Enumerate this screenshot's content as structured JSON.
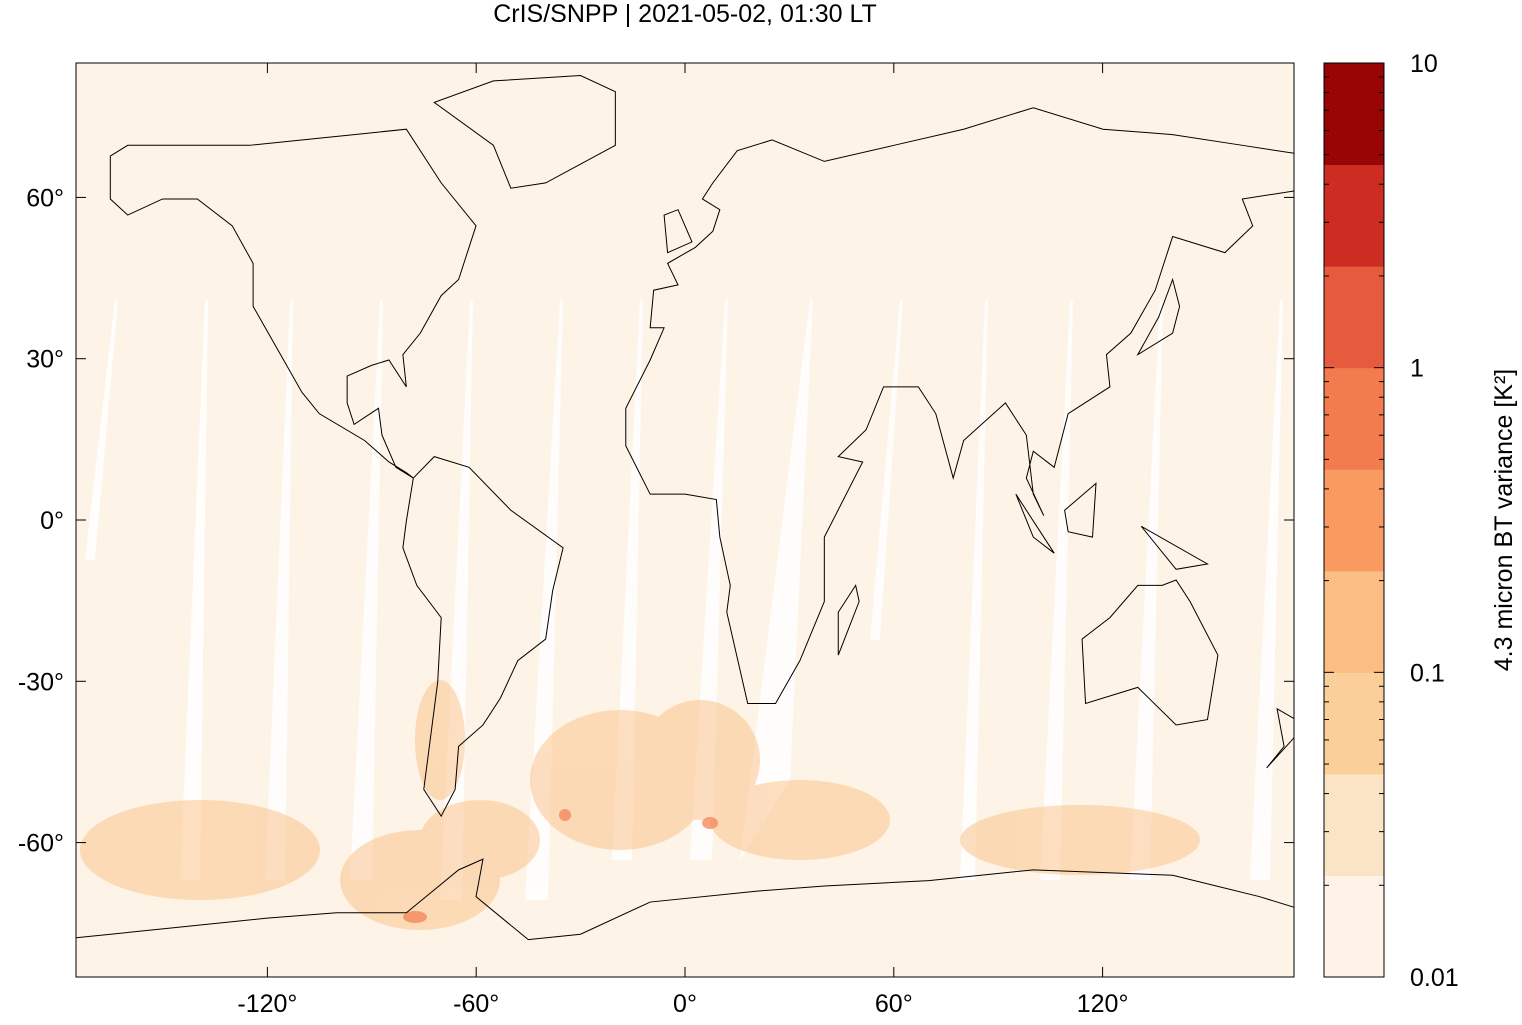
{
  "chart_data": {
    "type": "map",
    "title": "CrIS/SNPP | 2021-05-02, 01:30 LT",
    "xlim": [
      -175,
      175
    ],
    "ylim": [
      -85,
      85
    ],
    "xticks": [
      {
        "value": -120,
        "label": "-120°"
      },
      {
        "value": -60,
        "label": "-60°"
      },
      {
        "value": 0,
        "label": "0°"
      },
      {
        "value": 60,
        "label": "60°"
      },
      {
        "value": 120,
        "label": "120°"
      }
    ],
    "yticks": [
      {
        "value": -60,
        "label": "-60°"
      },
      {
        "value": -30,
        "label": "-30°"
      },
      {
        "value": 0,
        "label": "0°"
      },
      {
        "value": 30,
        "label": "30°"
      },
      {
        "value": 60,
        "label": "60°"
      }
    ],
    "colorbar": {
      "label": "4.3 micron BT variance [K²]",
      "lim": [
        0.01,
        10
      ],
      "log": true,
      "ticks": [
        0.01,
        0.1,
        1,
        10
      ],
      "colors": [
        "#fef3e6",
        "#fbe3c6",
        "#fbcf9a",
        "#fbbd84",
        "#f99a61",
        "#f27c4e",
        "#e65a3e",
        "#cc2c22",
        "#990505"
      ]
    }
  }
}
